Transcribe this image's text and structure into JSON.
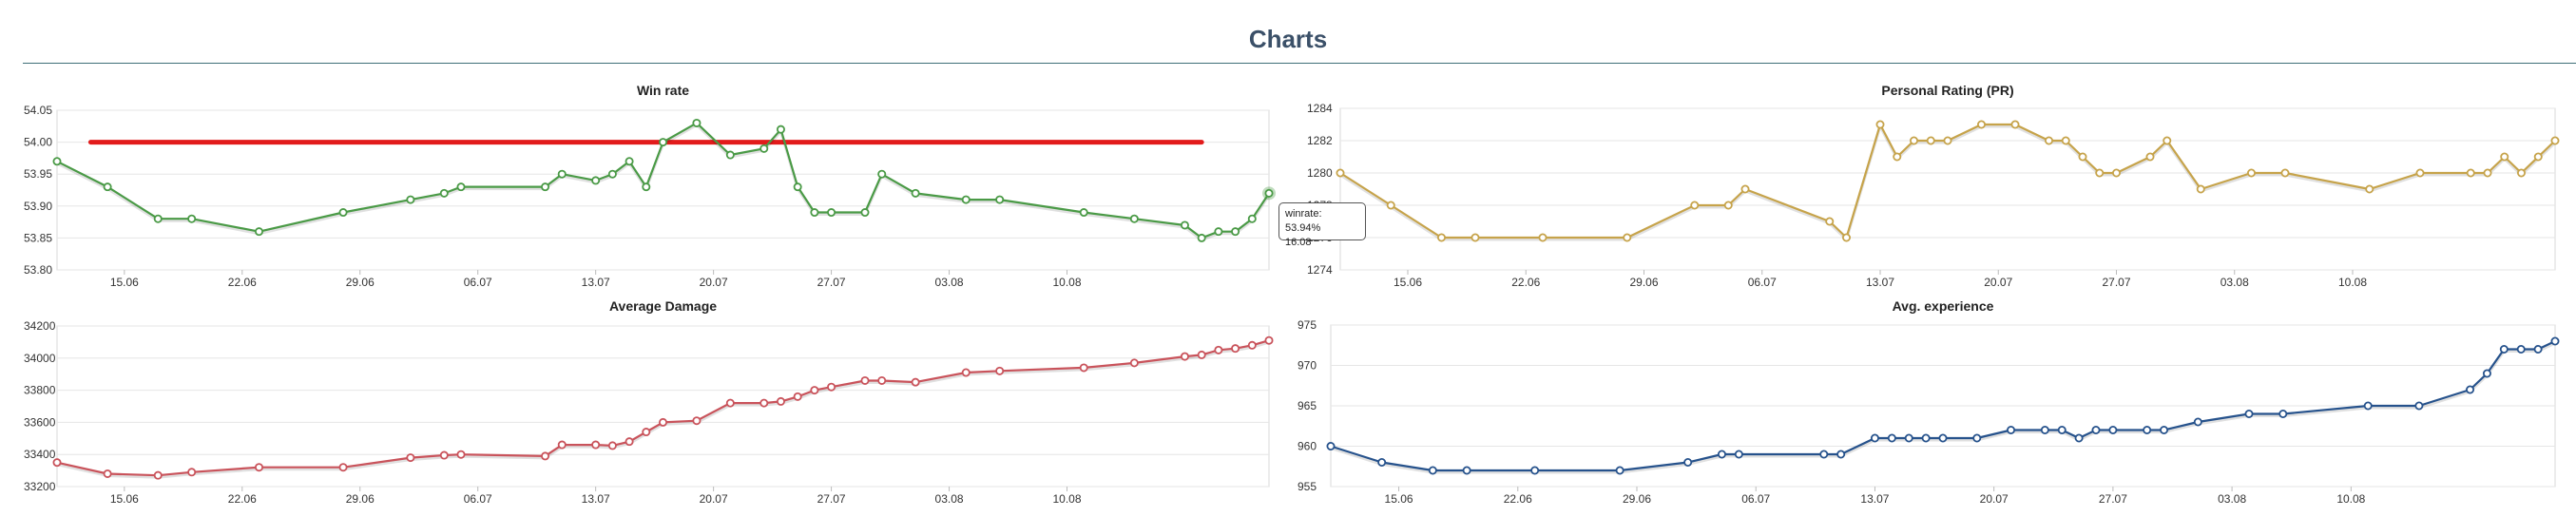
{
  "page": {
    "title": "Charts"
  },
  "tooltip": {
    "label": "winrate: 53.94%",
    "date": "16.08"
  },
  "chart_data": [
    {
      "type": "line",
      "title": "Win rate",
      "color": "#4a9a46",
      "ylim": [
        53.8,
        54.05
      ],
      "yticks": [
        "54.05",
        "54.00",
        "53.95",
        "53.90",
        "53.85",
        "53.80"
      ],
      "xticks": [
        "15.06",
        "22.06",
        "29.06",
        "06.07",
        "13.07",
        "20.07",
        "27.07",
        "03.08",
        "10.08"
      ],
      "threshold": {
        "value": 54.0,
        "color": "#e21b1b",
        "from_day": 2,
        "to_day": 68
      },
      "series": [
        {
          "x": [
            0,
            3,
            6,
            8,
            12,
            17,
            21,
            23,
            24,
            29,
            30,
            32,
            33,
            34,
            35,
            36,
            38,
            40,
            42,
            43,
            44,
            45,
            46,
            48,
            49,
            51,
            54,
            56,
            61,
            64,
            67,
            68,
            69,
            70,
            71,
            72
          ],
          "values": [
            53.97,
            53.93,
            53.88,
            53.88,
            53.86,
            53.89,
            53.91,
            53.92,
            53.93,
            53.93,
            53.95,
            53.94,
            53.95,
            53.97,
            53.93,
            54.0,
            54.03,
            53.98,
            53.99,
            54.02,
            53.93,
            53.89,
            53.89,
            53.89,
            53.95,
            53.92,
            53.91,
            53.91,
            53.89,
            53.88,
            53.87,
            53.85,
            53.86,
            53.86,
            53.88,
            53.92
          ]
        }
      ]
    },
    {
      "type": "line",
      "title": "Personal Rating (PR)",
      "color": "#c6a34a",
      "ylim": [
        1274,
        1284
      ],
      "yticks": [
        "1284",
        "1282",
        "1280",
        "1278",
        "1276",
        "1274"
      ],
      "xticks": [
        "15.06",
        "22.06",
        "29.06",
        "06.07",
        "13.07",
        "20.07",
        "27.07",
        "03.08",
        "10.08"
      ],
      "series": [
        {
          "x": [
            0,
            3,
            6,
            8,
            12,
            17,
            21,
            23,
            24,
            29,
            30,
            32,
            33,
            34,
            35,
            36,
            38,
            40,
            42,
            43,
            44,
            45,
            46,
            48,
            49,
            51,
            54,
            56,
            61,
            64,
            67,
            68,
            69,
            70,
            71,
            72
          ],
          "values": [
            1280,
            1278,
            1276,
            1276,
            1276,
            1276,
            1278,
            1278,
            1279,
            1277,
            1276,
            1283,
            1281,
            1282,
            1282,
            1282,
            1283,
            1283,
            1282,
            1282,
            1281,
            1280,
            1280,
            1281,
            1282,
            1279,
            1280,
            1280,
            1279,
            1280,
            1280,
            1280,
            1281,
            1280,
            1281,
            1282
          ]
        }
      ]
    },
    {
      "type": "line",
      "title": "Average Damage",
      "color": "#c9535b",
      "ylim": [
        33200,
        34200
      ],
      "yticks": [
        "34200",
        "34000",
        "33800",
        "33600",
        "33400",
        "33200"
      ],
      "xticks": [
        "15.06",
        "22.06",
        "29.06",
        "06.07",
        "13.07",
        "20.07",
        "27.07",
        "03.08",
        "10.08"
      ],
      "series": [
        {
          "x": [
            0,
            3,
            6,
            8,
            12,
            17,
            21,
            23,
            24,
            29,
            30,
            32,
            33,
            34,
            35,
            36,
            38,
            40,
            42,
            43,
            44,
            45,
            46,
            48,
            49,
            51,
            54,
            56,
            61,
            64,
            67,
            68,
            69,
            70,
            71,
            72
          ],
          "values": [
            33350,
            33280,
            33270,
            33290,
            33320,
            33320,
            33380,
            33395,
            33400,
            33390,
            33460,
            33460,
            33455,
            33480,
            33540,
            33600,
            33610,
            33720,
            33720,
            33730,
            33760,
            33800,
            33820,
            33860,
            33860,
            33850,
            33910,
            33920,
            33940,
            33970,
            34010,
            34020,
            34050,
            34060,
            34080,
            34110
          ]
        }
      ]
    },
    {
      "type": "line",
      "title": "Avg. experience",
      "color": "#26528c",
      "ylim": [
        955,
        975
      ],
      "yticks": [
        "975",
        "970",
        "965",
        "960",
        "955"
      ],
      "xticks": [
        "15.06",
        "22.06",
        "29.06",
        "06.07",
        "13.07",
        "20.07",
        "27.07",
        "03.08",
        "10.08"
      ],
      "series": [
        {
          "x": [
            0,
            3,
            6,
            8,
            12,
            17,
            21,
            23,
            24,
            29,
            30,
            32,
            33,
            34,
            35,
            36,
            38,
            40,
            42,
            43,
            44,
            45,
            46,
            48,
            49,
            51,
            54,
            56,
            61,
            64,
            67,
            68,
            69,
            70,
            71,
            72
          ],
          "values": [
            960,
            958,
            957,
            957,
            957,
            957,
            958,
            959,
            959,
            959,
            959,
            961,
            961,
            961,
            961,
            961,
            961,
            962,
            962,
            962,
            961,
            962,
            962,
            962,
            962,
            963,
            964,
            964,
            965,
            965,
            967,
            969,
            972,
            972,
            972,
            973
          ]
        }
      ]
    }
  ]
}
